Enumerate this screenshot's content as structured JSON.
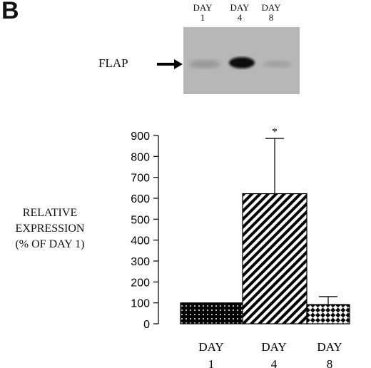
{
  "panel_letter": "B",
  "blot": {
    "lanes": [
      {
        "day": "DAY",
        "num": "1"
      },
      {
        "day": "DAY",
        "num": "4"
      },
      {
        "day": "DAY",
        "num": "8"
      }
    ],
    "band_label": "FLAP"
  },
  "chart_data": {
    "type": "bar",
    "categories": [
      "DAY 1",
      "DAY 4",
      "DAY 8"
    ],
    "category_lines": [
      [
        "DAY",
        "1"
      ],
      [
        "DAY",
        "4"
      ],
      [
        "DAY",
        "8"
      ]
    ],
    "values": [
      100,
      622,
      92
    ],
    "error_upper": [
      0,
      886,
      130
    ],
    "annotations": [
      {
        "category": "DAY 4",
        "text": "*"
      }
    ],
    "ylabel_lines": [
      "RELATIVE",
      "EXPRESSION",
      "(% OF DAY 1)"
    ],
    "ylim": [
      0,
      900
    ],
    "yticks": [
      0,
      100,
      200,
      300,
      400,
      500,
      600,
      700,
      800,
      900
    ],
    "patterns": [
      "dots",
      "diagonal-stripes",
      "checkered-diamonds"
    ],
    "colors": {
      "fill_dark": "#000000",
      "fill_light": "#ffffff"
    }
  }
}
